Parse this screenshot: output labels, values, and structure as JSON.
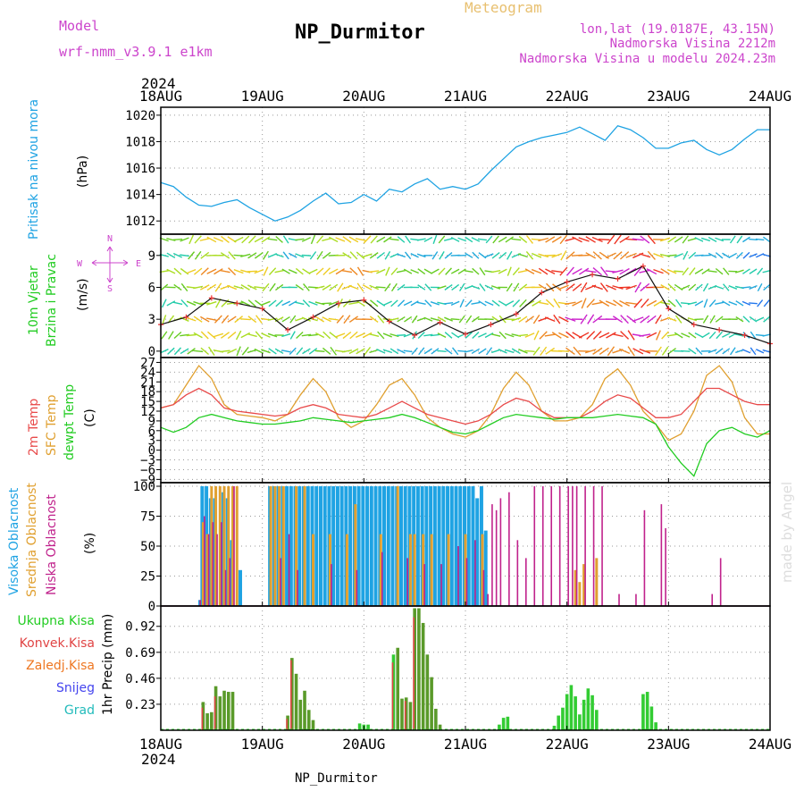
{
  "header": {
    "model_label": "Model",
    "model_name": "wrf-nmm_v3.9.1 e1km",
    "title": "NP_Durmitor",
    "subtitle": "Meteogram",
    "coords": "lon,lat (19.0187E, 43.15N)",
    "elevation": "Nadmorska Visina 2212m",
    "model_elevation": "Nadmorska Visina u modelu 2024.23m"
  },
  "footer": {
    "station": "NP_Durmitor",
    "year_top": "2024",
    "year_bottom": "2024",
    "credit": "made by Angel"
  },
  "colors": {
    "pressure": "#1fa3e3",
    "temp2m": "#e84a4a",
    "sfc": "#e0a030",
    "dew": "#22cc22",
    "high_cloud": "#1fa3e3",
    "mid_cloud": "#e0a030",
    "low_cloud": "#c0228c",
    "rain": "#5a9a2a",
    "conv": "#e04444",
    "frozen": "#ee7722",
    "snow": "#4444ee",
    "graupel": "#22bbbb",
    "compass": "#cc44cc",
    "grid": "#999999"
  },
  "chart_data": [
    {
      "type": "line",
      "name": "pressure",
      "ylabel": "(hPa)",
      "side_label": "Pritisak na nivou mora",
      "x_ticks": [
        "18AUG",
        "19AUG",
        "20AUG",
        "21AUG",
        "22AUG",
        "23AUG",
        "24AUG"
      ],
      "ylim": [
        1011,
        1020.6
      ],
      "y_ticks": [
        1012,
        1014,
        1016,
        1018,
        1020
      ],
      "x_hours": [
        0,
        3,
        6,
        9,
        12,
        15,
        18,
        21,
        24,
        27,
        30,
        33,
        36,
        39,
        42,
        45,
        48,
        51,
        54,
        57,
        60,
        63,
        66,
        69,
        72,
        75,
        78,
        81,
        84,
        87,
        90,
        93,
        96,
        99,
        102,
        105,
        108,
        111,
        114,
        117,
        120,
        123,
        126,
        129,
        132,
        135,
        138,
        141,
        144
      ],
      "values": [
        1014.9,
        1014.6,
        1013.8,
        1013.2,
        1013.1,
        1013.4,
        1013.6,
        1013.0,
        1012.5,
        1012.0,
        1012.3,
        1012.8,
        1013.5,
        1014.1,
        1013.3,
        1013.4,
        1014.0,
        1013.5,
        1014.4,
        1014.2,
        1014.8,
        1015.2,
        1014.4,
        1014.6,
        1014.4,
        1014.8,
        1015.8,
        1016.7,
        1017.6,
        1018.0,
        1018.3,
        1018.5,
        1018.7,
        1019.1,
        1018.6,
        1018.1,
        1019.2,
        1018.9,
        1018.3,
        1017.5,
        1017.5,
        1017.9,
        1018.1,
        1017.4,
        1017.0,
        1017.4,
        1018.2,
        1018.9,
        1018.9
      ]
    },
    {
      "type": "line",
      "name": "wind",
      "side_label_1": "10m Vjetar",
      "side_label_2": "Brzina i Pravac",
      "ylabel": "(m/s)",
      "compass_letters": [
        "N",
        "S",
        "W",
        "E"
      ],
      "ylim": [
        -0.6,
        11
      ],
      "y_ticks": [
        0,
        3,
        6,
        9
      ],
      "x_hours": [
        0,
        6,
        12,
        18,
        24,
        30,
        36,
        42,
        48,
        54,
        60,
        66,
        72,
        78,
        84,
        90,
        96,
        102,
        108,
        114,
        120,
        126,
        132,
        138,
        144
      ],
      "values": [
        2.5,
        3.2,
        5.0,
        4.5,
        4.0,
        2.0,
        3.2,
        4.5,
        4.8,
        2.8,
        1.5,
        2.7,
        1.6,
        2.5,
        3.5,
        5.5,
        6.5,
        7.2,
        6.8,
        8.0,
        4.0,
        2.5,
        2.0,
        1.5,
        0.7
      ]
    },
    {
      "type": "line",
      "name": "temperature",
      "ylabel": "(C)",
      "series_labels": [
        "2m Temp",
        "SFC Temp",
        "dewpt Temp"
      ],
      "ylim": [
        -10,
        28.5
      ],
      "y_ticks": [
        -9,
        -6,
        -3,
        0,
        3,
        6,
        9,
        12,
        15,
        18,
        21,
        24,
        27
      ],
      "x_hours": [
        0,
        3,
        6,
        9,
        12,
        15,
        18,
        21,
        24,
        27,
        30,
        33,
        36,
        39,
        42,
        45,
        48,
        51,
        54,
        57,
        60,
        63,
        66,
        69,
        72,
        75,
        78,
        81,
        84,
        87,
        90,
        93,
        96,
        99,
        102,
        105,
        108,
        111,
        114,
        117,
        120,
        123,
        126,
        129,
        132,
        135,
        138,
        141,
        144
      ],
      "series": [
        {
          "name": "2m Temp",
          "values": [
            13,
            14,
            17,
            19,
            17,
            13,
            12,
            11.5,
            11,
            10.5,
            11,
            13,
            14,
            13,
            11,
            10.5,
            10,
            11,
            13,
            15,
            13,
            11,
            10,
            9,
            8,
            9,
            11,
            14,
            16,
            15,
            12,
            10,
            10,
            10,
            12,
            15,
            17,
            16,
            13,
            10,
            10,
            11,
            15,
            19,
            19,
            17,
            15,
            14,
            14
          ]
        },
        {
          "name": "SFC Temp",
          "values": [
            13,
            14,
            20,
            26,
            22,
            14,
            11,
            10.5,
            10,
            9,
            11,
            17,
            22,
            18,
            10,
            7,
            9,
            14,
            20,
            22,
            17,
            10,
            7,
            5,
            4,
            6,
            11,
            19,
            24,
            20,
            12,
            9,
            9,
            10,
            14,
            22,
            25,
            20,
            12,
            8,
            3,
            5,
            12,
            23,
            26,
            21,
            10,
            5,
            5
          ]
        },
        {
          "name": "dewpt Temp",
          "values": [
            7,
            5.5,
            7,
            10,
            11,
            10,
            9,
            8.5,
            8,
            8,
            8.5,
            9,
            10,
            9.5,
            9,
            8.5,
            9,
            9.5,
            10,
            11,
            10,
            8.5,
            7,
            5.5,
            5,
            6,
            8,
            10,
            11,
            10.5,
            10,
            9.5,
            10,
            10,
            10,
            10.5,
            11,
            10.5,
            10,
            8,
            1,
            -4,
            -8,
            2,
            6,
            7,
            5,
            4,
            6
          ]
        }
      ]
    },
    {
      "type": "bar",
      "name": "cloud",
      "ylabel": "(%)",
      "series_labels": [
        "Visoka Oblacnost",
        "Srednja Oblacnost",
        "Niska Oblacnost"
      ],
      "ylim": [
        0,
        103
      ],
      "y_ticks": [
        0,
        25,
        50,
        75,
        100
      ],
      "series": [
        {
          "name": "Visoka Oblacnost",
          "x_hours": [
            9.5,
            10,
            11,
            12,
            13,
            15,
            16,
            17,
            19,
            26,
            27,
            28,
            29,
            30,
            31,
            32,
            33,
            34,
            35,
            36,
            37,
            38,
            39,
            40,
            41,
            42,
            43,
            44,
            45,
            46,
            47,
            48,
            49,
            50,
            51,
            52,
            53,
            54,
            55,
            56,
            57,
            58,
            59,
            60,
            61,
            62,
            63,
            64,
            65,
            66,
            67,
            68,
            69,
            70,
            71,
            72,
            73,
            74,
            75,
            76,
            77
          ],
          "values": [
            5,
            100,
            100,
            90,
            90,
            95,
            90,
            55,
            30,
            100,
            100,
            100,
            100,
            100,
            100,
            100,
            100,
            100,
            100,
            100,
            100,
            100,
            100,
            100,
            100,
            100,
            100,
            100,
            100,
            100,
            100,
            100,
            100,
            100,
            100,
            100,
            100,
            100,
            100,
            100,
            100,
            100,
            100,
            100,
            100,
            100,
            100,
            100,
            100,
            100,
            100,
            100,
            100,
            100,
            100,
            100,
            100,
            100,
            90,
            100,
            63
          ]
        },
        {
          "name": "Srednja Oblacnost",
          "x_hours": [
            10,
            11,
            12,
            13,
            14,
            15,
            16,
            17,
            18,
            26,
            27,
            28,
            29,
            32,
            34,
            36,
            40,
            44,
            46,
            52,
            56,
            59,
            60,
            62,
            64,
            68,
            72,
            76,
            98,
            99,
            100,
            103
          ],
          "values": [
            70,
            60,
            100,
            100,
            100,
            100,
            100,
            100,
            100,
            100,
            100,
            100,
            100,
            100,
            100,
            60,
            60,
            60,
            85,
            60,
            100,
            60,
            60,
            60,
            60,
            60,
            60,
            60,
            30,
            20,
            35,
            40
          ]
        },
        {
          "name": "Niska Oblacnost",
          "x_hours": [
            9,
            10,
            11,
            12,
            13,
            14,
            15,
            16,
            17,
            28,
            30,
            32,
            40,
            46,
            52,
            58,
            62,
            66,
            70,
            72,
            74,
            76,
            77,
            78,
            79,
            80,
            82,
            84,
            86,
            88,
            90,
            92,
            94,
            96,
            97,
            98,
            100,
            102,
            104,
            108,
            112,
            114,
            118,
            119,
            130,
            132
          ],
          "values": [
            5,
            75,
            60,
            70,
            60,
            70,
            30,
            40,
            100,
            40,
            60,
            30,
            35,
            30,
            45,
            40,
            35,
            35,
            50,
            40,
            55,
            30,
            10,
            85,
            80,
            90,
            95,
            55,
            40,
            100,
            100,
            100,
            100,
            100,
            100,
            100,
            100,
            100,
            100,
            10,
            10,
            80,
            85,
            65,
            10,
            40
          ]
        }
      ]
    },
    {
      "type": "bar",
      "name": "precip",
      "ylabel": "1hr Precip (mm)",
      "series_labels": [
        "Ukupna Kisa",
        "Konvek.Kisa",
        "Zaledj.Kisa",
        "Snijeg",
        "Grad"
      ],
      "ylim": [
        0,
        1.1
      ],
      "y_ticks": [
        0.23,
        0.46,
        0.69,
        0.92
      ],
      "series": [
        {
          "name": "Ukupna Kisa",
          "x_hours": [
            10,
            11,
            12,
            13,
            14,
            15,
            16,
            17,
            30,
            31,
            32,
            33,
            34,
            35,
            36,
            47,
            48,
            49,
            55,
            56,
            57,
            58,
            59,
            60,
            61,
            62,
            63,
            64,
            65,
            66,
            80,
            81,
            82,
            93,
            94,
            95,
            96,
            97,
            98,
            99,
            100,
            101,
            102,
            103,
            114,
            115,
            116,
            117
          ],
          "values": [
            0.25,
            0.15,
            0.16,
            0.39,
            0.3,
            0.35,
            0.34,
            0.34,
            0.13,
            0.64,
            0.5,
            0.27,
            0.35,
            0.18,
            0.09,
            0.06,
            0.05,
            0.05,
            0.67,
            0.73,
            0.28,
            0.29,
            0.25,
            1.08,
            1.08,
            0.95,
            0.67,
            0.47,
            0.19,
            0.05,
            0.05,
            0.11,
            0.12,
            0.04,
            0.13,
            0.2,
            0.32,
            0.4,
            0.3,
            0.14,
            0.27,
            0.37,
            0.31,
            0.18,
            0.32,
            0.34,
            0.21,
            0.07
          ]
        },
        {
          "name": "Konvek.Kisa",
          "x_hours": [
            10,
            13,
            30,
            31,
            55,
            58,
            60
          ],
          "values": [
            0.2,
            0.3,
            0.1,
            0.62,
            0.6,
            0.26,
            1.0
          ]
        }
      ]
    }
  ]
}
